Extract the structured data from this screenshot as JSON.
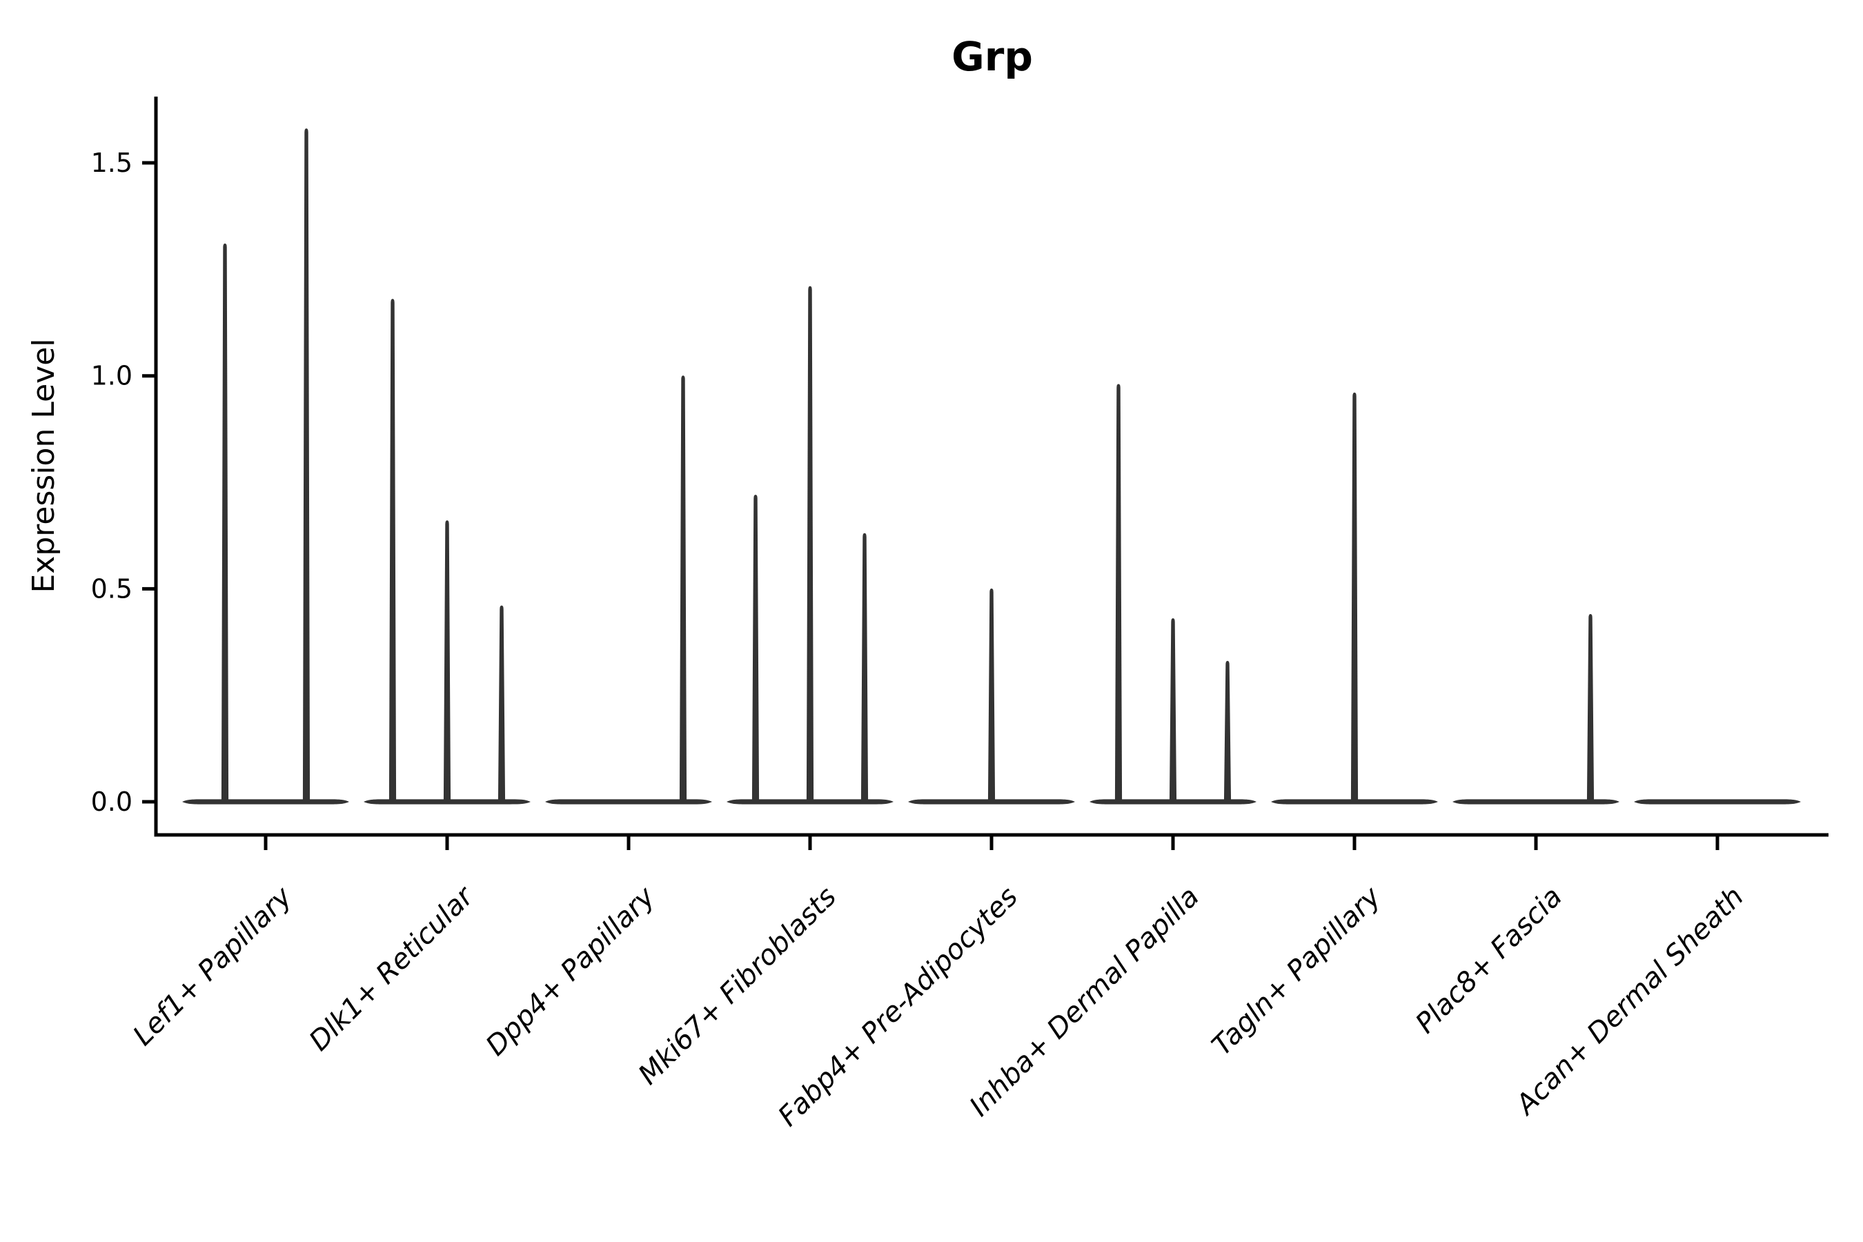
{
  "figure": {
    "background": "#ffffff"
  },
  "chart_data": {
    "type": "violin",
    "title": "Grp",
    "ylabel": "Expression Level",
    "xlabel": "",
    "grid": false,
    "legend": "none",
    "x_tick_rotation": 45,
    "yticks": [
      0.0,
      0.5,
      1.0,
      1.5
    ],
    "ytick_labels": [
      "0.0",
      "0.5",
      "1.0",
      "1.5"
    ],
    "ylim": [
      -0.08,
      1.66
    ],
    "colors": {
      "violin_fill": "#333333",
      "axis": "#000000",
      "text": "#000000"
    },
    "categories": [
      "Lef1+ Papillary",
      "Dlk1+ Reticular",
      "Dpp4+ Papillary",
      "Mki67+ Fibroblasts",
      "Fabp4+ Pre-Adipocytes",
      "Inhba+ Dermal Papilla",
      "Tagln+ Papillary",
      "Plac8+ Fascia",
      "Acan+ Dermal Sheath"
    ],
    "series": [
      {
        "category": "Lef1+ Papillary",
        "baseline_value": 0.0,
        "spikes": [
          {
            "offset": -59,
            "value": 1.31
          },
          {
            "offset": 59,
            "value": 1.58
          }
        ]
      },
      {
        "category": "Dlk1+ Reticular",
        "baseline_value": 0.0,
        "spikes": [
          {
            "offset": -79,
            "value": 1.18
          },
          {
            "offset": 0,
            "value": 0.66
          },
          {
            "offset": 79,
            "value": 0.46
          }
        ]
      },
      {
        "category": "Dpp4+ Papillary",
        "baseline_value": 0.0,
        "spikes": [
          {
            "offset": 79,
            "value": 1.0
          }
        ]
      },
      {
        "category": "Mki67+ Fibroblasts",
        "baseline_value": 0.0,
        "spikes": [
          {
            "offset": -79,
            "value": 0.72
          },
          {
            "offset": 0,
            "value": 1.21
          },
          {
            "offset": 79,
            "value": 0.63
          }
        ]
      },
      {
        "category": "Fabp4+ Pre-Adipocytes",
        "baseline_value": 0.0,
        "spikes": [
          {
            "offset": 0,
            "value": 0.5
          }
        ]
      },
      {
        "category": "Inhba+ Dermal Papilla",
        "baseline_value": 0.0,
        "spikes": [
          {
            "offset": -79,
            "value": 0.98
          },
          {
            "offset": 0,
            "value": 0.43
          },
          {
            "offset": 79,
            "value": 0.33
          }
        ]
      },
      {
        "category": "Tagln+ Papillary",
        "baseline_value": 0.0,
        "spikes": [
          {
            "offset": 0,
            "value": 0.96
          }
        ]
      },
      {
        "category": "Plac8+ Fascia",
        "baseline_value": 0.0,
        "spikes": [
          {
            "offset": 79,
            "value": 0.44
          }
        ]
      },
      {
        "category": "Acan+ Dermal Sheath",
        "baseline_value": 0.0,
        "spikes": []
      }
    ]
  }
}
